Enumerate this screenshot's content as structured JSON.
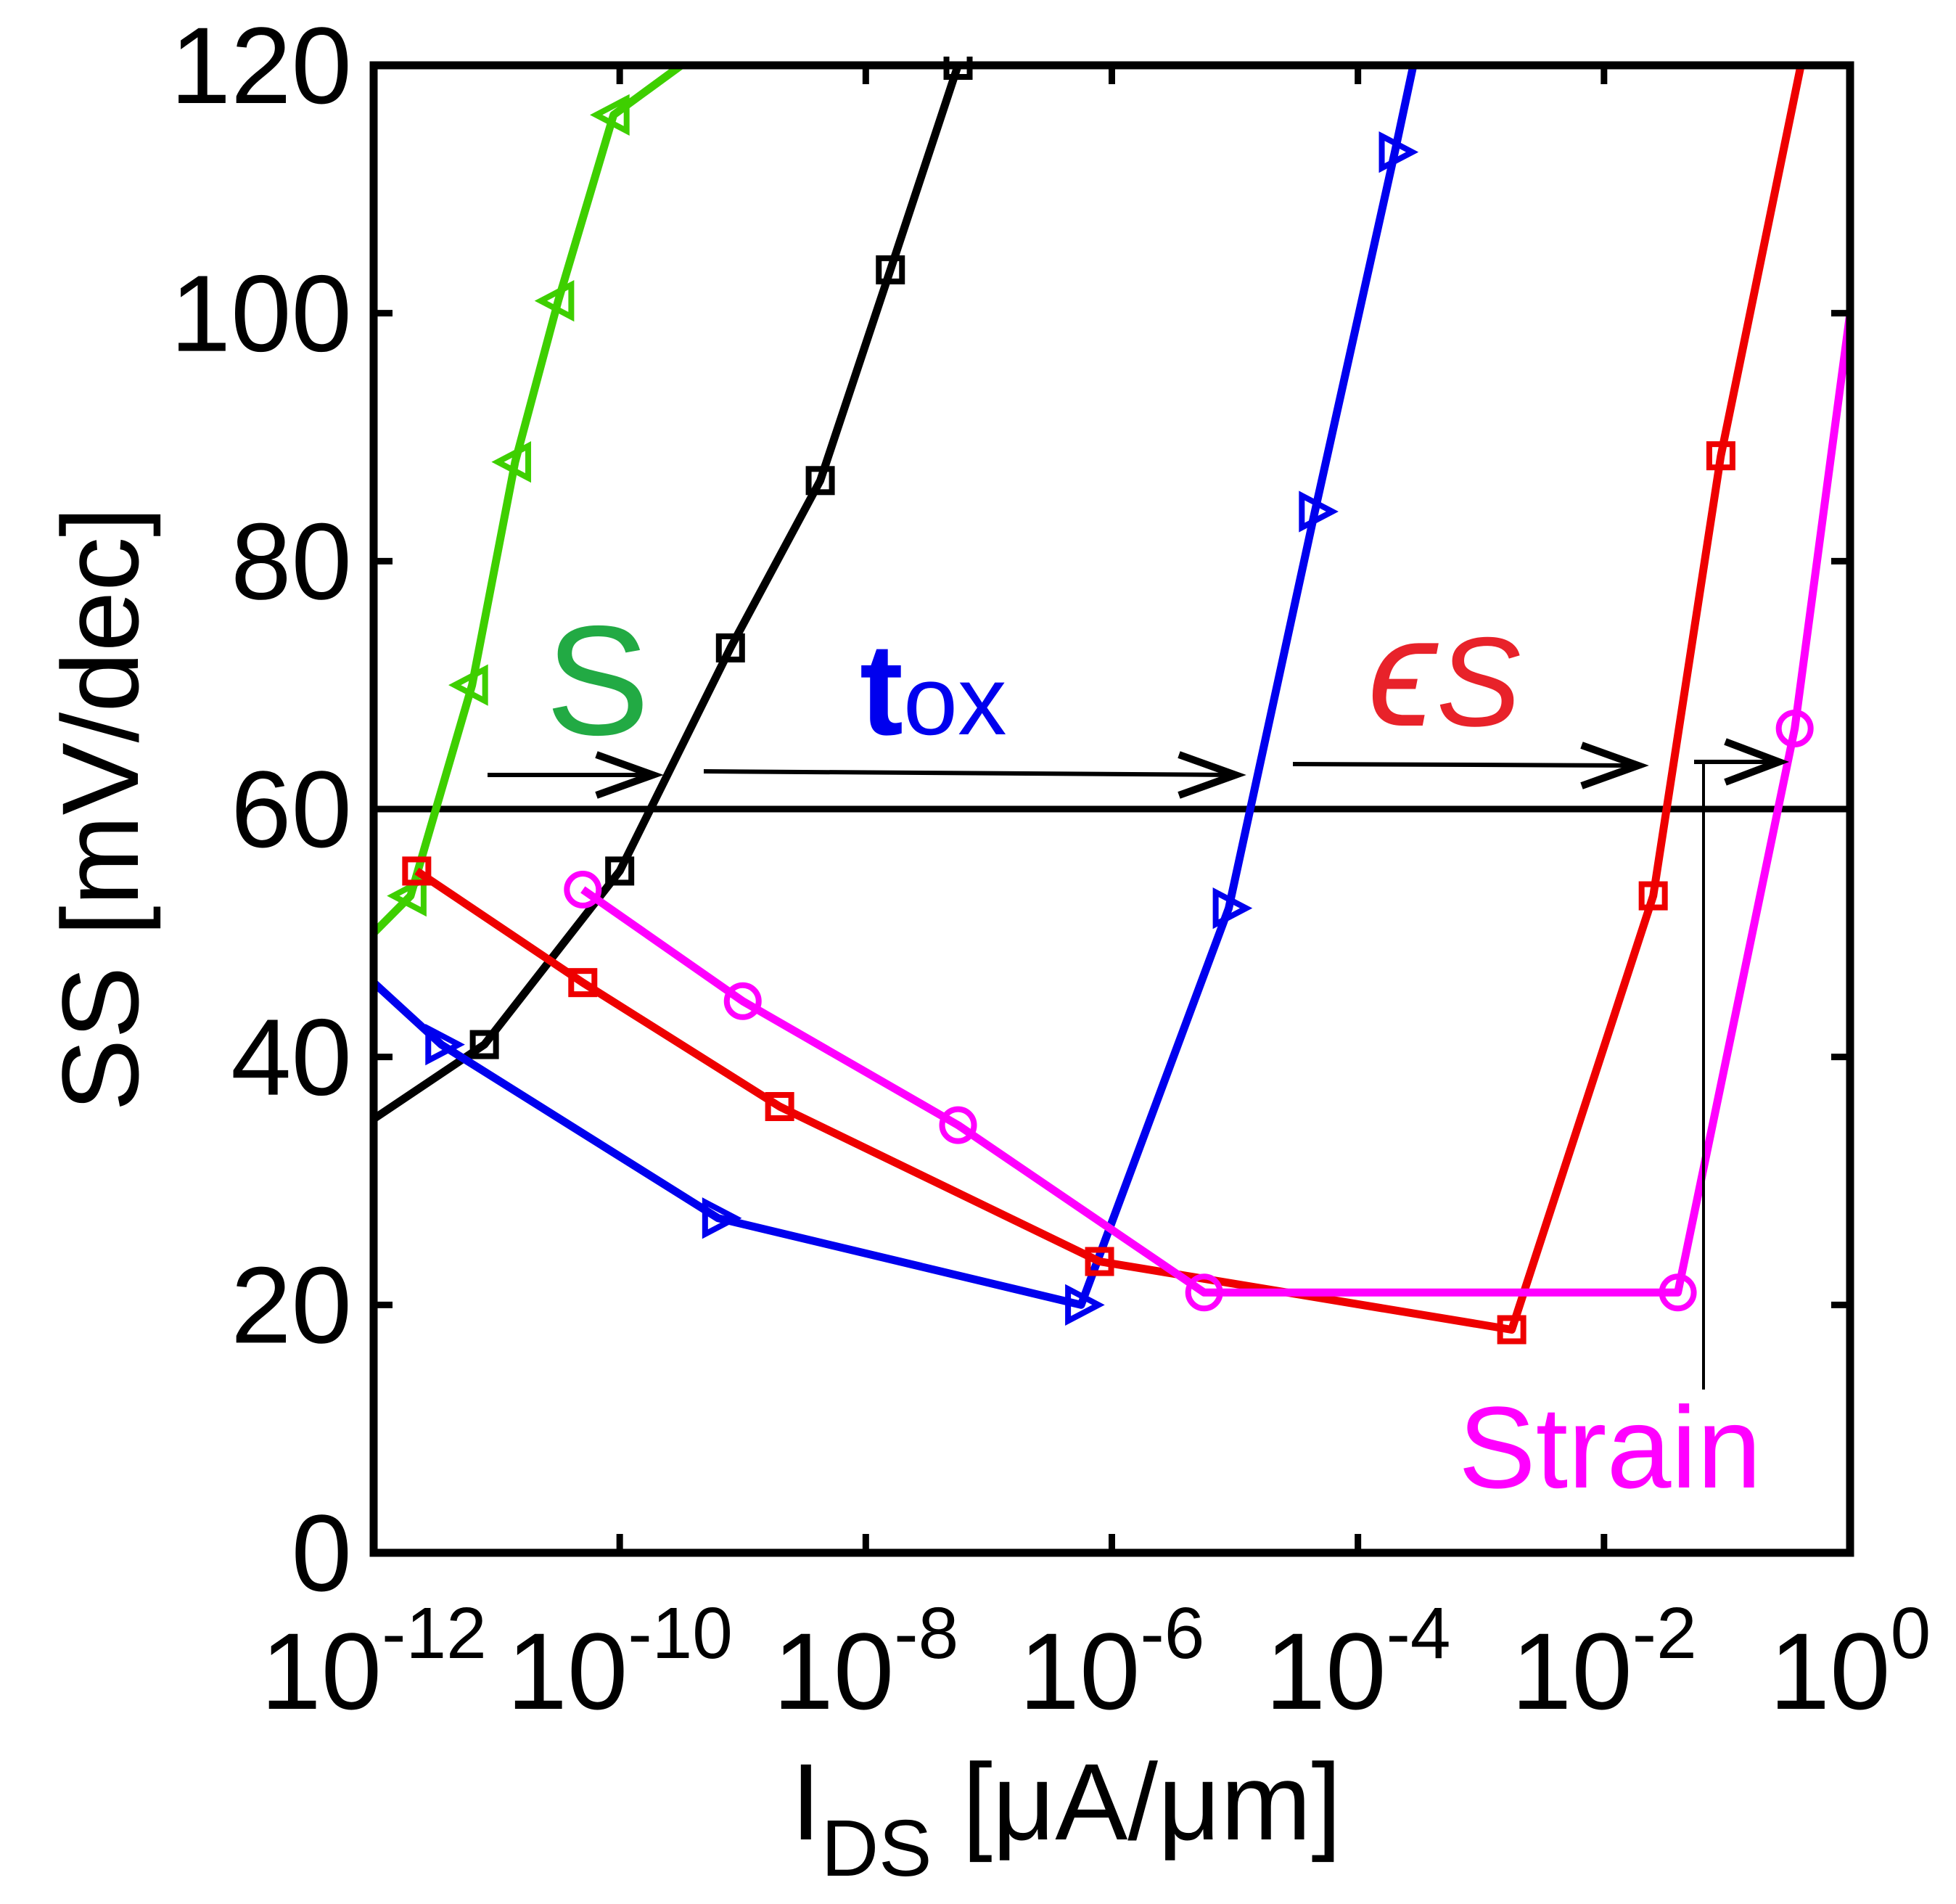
{
  "chart_data": {
    "type": "line",
    "xscale": "log10",
    "xlim_exp": [
      -12,
      0
    ],
    "ylim": [
      0,
      120
    ],
    "yticks": [
      0,
      20,
      40,
      60,
      80,
      100,
      120
    ],
    "xtick_exponents": [
      -12,
      -10,
      -8,
      -6,
      -4,
      -2,
      0
    ],
    "xtick_base": "10",
    "xtick_labels": [
      "-12",
      "-10",
      "-8",
      "-6",
      "-4",
      "-2",
      "0"
    ],
    "ylabel": "SS [mV/dec]",
    "xlabel_main": "I",
    "xlabel_sub": "DS",
    "xlabel_unit": " [μA/μm]",
    "reference_line_y": 60,
    "series": [
      {
        "name": "green",
        "color": "#3ecf00",
        "marker": "triangle-left",
        "x_exp": [
          -12,
          -11.7,
          -11.2,
          -10.85,
          -10.5,
          -10.05,
          -9.5,
          -9.05,
          -8.98
        ],
        "y": [
          50,
          53,
          70,
          88,
          101,
          116,
          120,
          120,
          120
        ],
        "marker_idx": [
          1,
          2,
          3,
          4,
          5
        ]
      },
      {
        "name": "black",
        "color": "#000000",
        "marker": "square",
        "x_exp": [
          -12,
          -11.1,
          -10,
          -9.1,
          -8.37,
          -7.8,
          -7.25
        ],
        "y": [
          35,
          41,
          55,
          73,
          86.5,
          103.5,
          120
        ],
        "marker_idx": [
          1,
          2,
          3,
          4,
          5,
          6
        ]
      },
      {
        "name": "blue",
        "color": "#0000ee",
        "marker": "triangle-right",
        "x_exp": [
          -12,
          -11.45,
          -9.2,
          -6.25,
          -5.05,
          -4.35,
          -3.7,
          -3.55
        ],
        "y": [
          46,
          41,
          27,
          20,
          52,
          84,
          113,
          120
        ],
        "marker_idx": [
          1,
          2,
          3,
          4,
          5,
          6
        ]
      },
      {
        "name": "red",
        "color": "#ee0000",
        "marker": "square",
        "x_exp": [
          -11.65,
          -10.3,
          -8.7,
          -6.1,
          -2.75,
          -1.6,
          -1.05,
          -0.4
        ],
        "y": [
          55,
          46,
          36,
          23.5,
          18,
          53,
          88.5,
          120
        ],
        "marker_idx": [
          0,
          1,
          2,
          3,
          4,
          5,
          6
        ]
      },
      {
        "name": "magenta",
        "color": "#ff00ff",
        "marker": "circle",
        "x_exp": [
          -10.3,
          -9,
          -7.25,
          -5.25,
          -1.4,
          -0.45,
          0
        ],
        "y": [
          53.5,
          44.5,
          34.5,
          21,
          21,
          66.5,
          100
        ],
        "marker_idx": [
          0,
          1,
          2,
          3,
          4,
          5
        ]
      }
    ],
    "annotations": {
      "s_label": "S",
      "s_color": "#22aa44",
      "tox_main": "t",
      "tox_sub": "ox",
      "tox_color": "#0000ee",
      "eps_main": "ϵ",
      "eps_sub": "S",
      "eps_color": "#e8222a",
      "strain_label": "Strain",
      "strain_color": "#ff00ff"
    }
  }
}
